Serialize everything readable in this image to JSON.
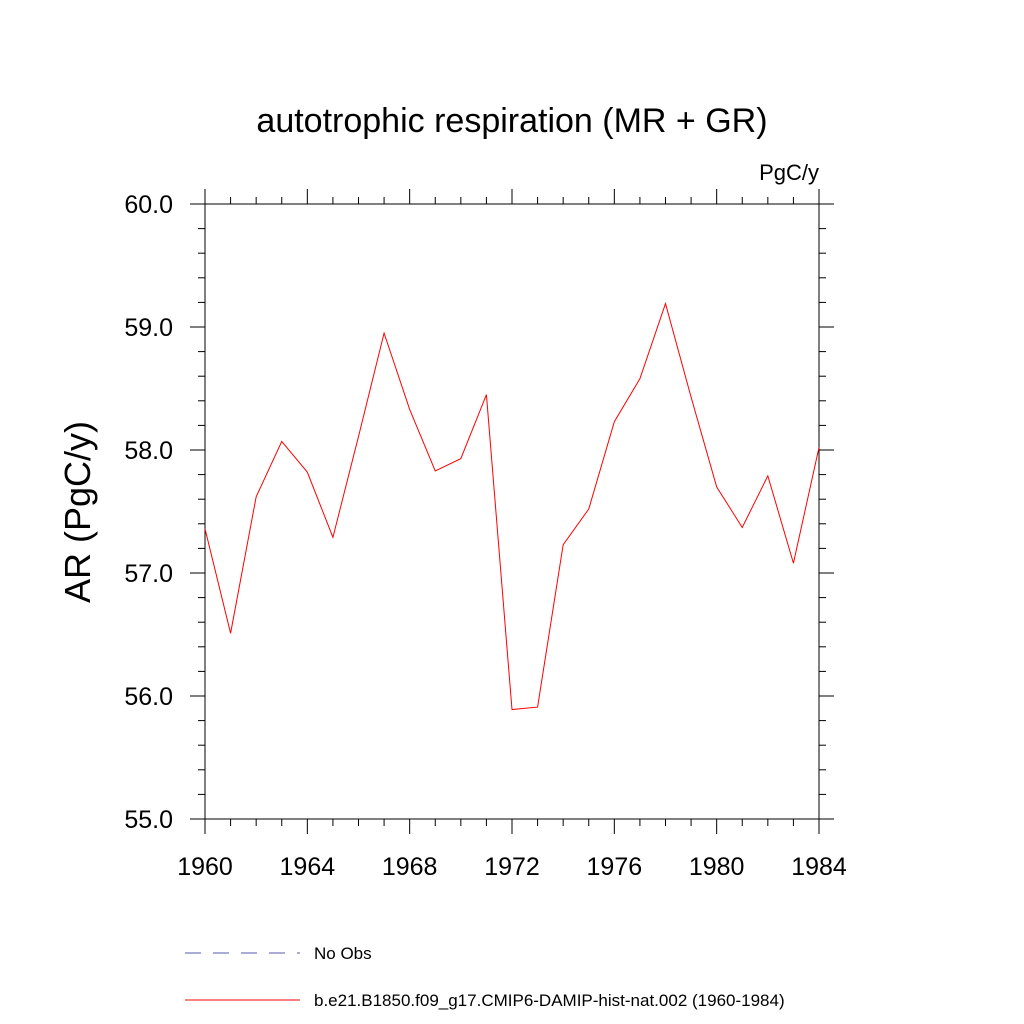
{
  "chart_data": {
    "type": "line",
    "title": "autotrophic respiration (MR + GR)",
    "units_label": "PgC/y",
    "ylabel": "AR  (PgC/y)",
    "xlabel": "",
    "xlim": [
      1960,
      1984
    ],
    "ylim": [
      55.0,
      60.0
    ],
    "x_ticks": [
      1960,
      1964,
      1968,
      1972,
      1976,
      1980,
      1984
    ],
    "x_tick_labels": [
      "1960",
      "1964",
      "1968",
      "1972",
      "1976",
      "1980",
      "1984"
    ],
    "y_ticks": [
      55.0,
      56.0,
      57.0,
      58.0,
      59.0,
      60.0
    ],
    "y_tick_labels": [
      "55.0",
      "56.0",
      "57.0",
      "58.0",
      "59.0",
      "60.0"
    ],
    "grid": false,
    "legend_position": "bottom",
    "series": [
      {
        "name": "b.e21.B1850.f09_g17.CMIP6-DAMIP-hist-nat.002 (1960-1984)",
        "color": "#ff0000",
        "style": "solid",
        "x": [
          1960,
          1961,
          1962,
          1963,
          1964,
          1965,
          1966,
          1967,
          1968,
          1969,
          1970,
          1971,
          1972,
          1973,
          1974,
          1975,
          1976,
          1977,
          1978,
          1979,
          1980,
          1981,
          1982,
          1983,
          1984
        ],
        "y": [
          57.36,
          56.51,
          57.62,
          58.07,
          57.82,
          57.29,
          58.11,
          58.95,
          58.33,
          57.83,
          57.93,
          58.45,
          55.89,
          55.91,
          57.23,
          57.52,
          58.23,
          58.58,
          59.19,
          58.43,
          57.7,
          57.37,
          57.79,
          57.08,
          58.02
        ]
      }
    ],
    "legend": [
      {
        "label": "No Obs",
        "color": "#5a5ab0",
        "style": "dashed"
      },
      {
        "label": "b.e21.B1850.f09_g17.CMIP6-DAMIP-hist-nat.002 (1960-1984)",
        "color": "#ff0000",
        "style": "solid"
      }
    ]
  }
}
